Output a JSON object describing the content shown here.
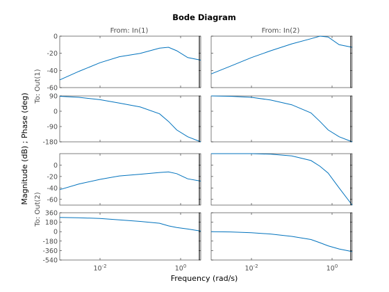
{
  "chart_data": {
    "type": "line",
    "title": "Bode Diagram",
    "xlabel": "Frequency  (rad/s)",
    "ylabel": "Magnitude (dB) ; Phase (deg)",
    "x_scale": "log",
    "x_ticks": [
      "10^-2",
      "10^0"
    ],
    "xlim": [
      0.001,
      3.16
    ],
    "column_labels": [
      "From: In(1)",
      "From: In(2)"
    ],
    "row_labels": [
      "To: Out(1)",
      "To: Out(2)"
    ],
    "line_color": "#0072bd",
    "marker_x": 3.16,
    "panels": [
      {
        "id": "out1-mag",
        "kind": "Magnitude",
        "ylim": [
          -60,
          0
        ],
        "yticks": [
          0,
          -20,
          -40,
          -60
        ],
        "series": [
          {
            "x": [
              0.001,
              0.003,
              0.01,
              0.03,
              0.1,
              0.3,
              0.5,
              0.8,
              1.5,
              3.16
            ],
            "y": [
              -51,
              -41,
              -31,
              -24,
              -20,
              -14,
              -13,
              -17,
              -25,
              -28
            ]
          },
          {
            "x": [
              0.001,
              0.003,
              0.01,
              0.03,
              0.1,
              0.3,
              0.5,
              0.8,
              1.5,
              3.16
            ],
            "y": [
              -44,
              -35,
              -25,
              -17,
              -9,
              -3,
              0,
              -1,
              -10,
              -13
            ]
          }
        ]
      },
      {
        "id": "out1-phase",
        "kind": "Phase",
        "ylim": [
          -180,
          90
        ],
        "yticks": [
          90,
          0,
          -90,
          -180
        ],
        "series": [
          {
            "x": [
              0.001,
              0.003,
              0.01,
              0.03,
              0.1,
              0.3,
              0.5,
              0.8,
              1.5,
              3.16
            ],
            "y": [
              88,
              82,
              68,
              48,
              25,
              -15,
              -60,
              -110,
              -150,
              -180
            ]
          },
          {
            "x": [
              0.001,
              0.003,
              0.01,
              0.03,
              0.1,
              0.3,
              0.5,
              0.8,
              1.5,
              3.16
            ],
            "y": [
              90,
              88,
              82,
              66,
              38,
              -10,
              -60,
              -110,
              -150,
              -180
            ]
          }
        ]
      },
      {
        "id": "out2-mag",
        "kind": "Magnitude",
        "ylim": [
          -70,
          20
        ],
        "yticks": [
          0,
          -20,
          -40,
          -60
        ],
        "series": [
          {
            "x": [
              0.001,
              0.003,
              0.01,
              0.03,
              0.1,
              0.3,
              0.5,
              0.8,
              1.5,
              3.16
            ],
            "y": [
              -43,
              -33,
              -25,
              -19,
              -16,
              -13,
              -12,
              -15,
              -24,
              -28
            ]
          },
          {
            "x": [
              0.001,
              0.003,
              0.01,
              0.03,
              0.1,
              0.3,
              0.5,
              0.8,
              1.5,
              3.16
            ],
            "y": [
              20,
              20,
              20,
              19,
              16,
              8,
              -2,
              -14,
              -40,
              -70
            ]
          }
        ]
      },
      {
        "id": "out2-phase",
        "kind": "Phase",
        "ylim": [
          -540,
          360
        ],
        "yticks": [
          360,
          180,
          0,
          -180,
          -360,
          -540
        ],
        "series": [
          {
            "x": [
              0.001,
              0.003,
              0.01,
              0.03,
              0.1,
              0.3,
              0.5,
              0.8,
              1.5,
              3.16
            ],
            "y": [
              270,
              265,
              250,
              225,
              195,
              160,
              110,
              80,
              50,
              10
            ]
          },
          {
            "x": [
              0.001,
              0.003,
              0.01,
              0.03,
              0.1,
              0.3,
              0.5,
              0.8,
              1.5,
              3.16
            ],
            "y": [
              0,
              -5,
              -20,
              -45,
              -90,
              -150,
              -210,
              -270,
              -330,
              -380
            ]
          }
        ]
      }
    ]
  }
}
